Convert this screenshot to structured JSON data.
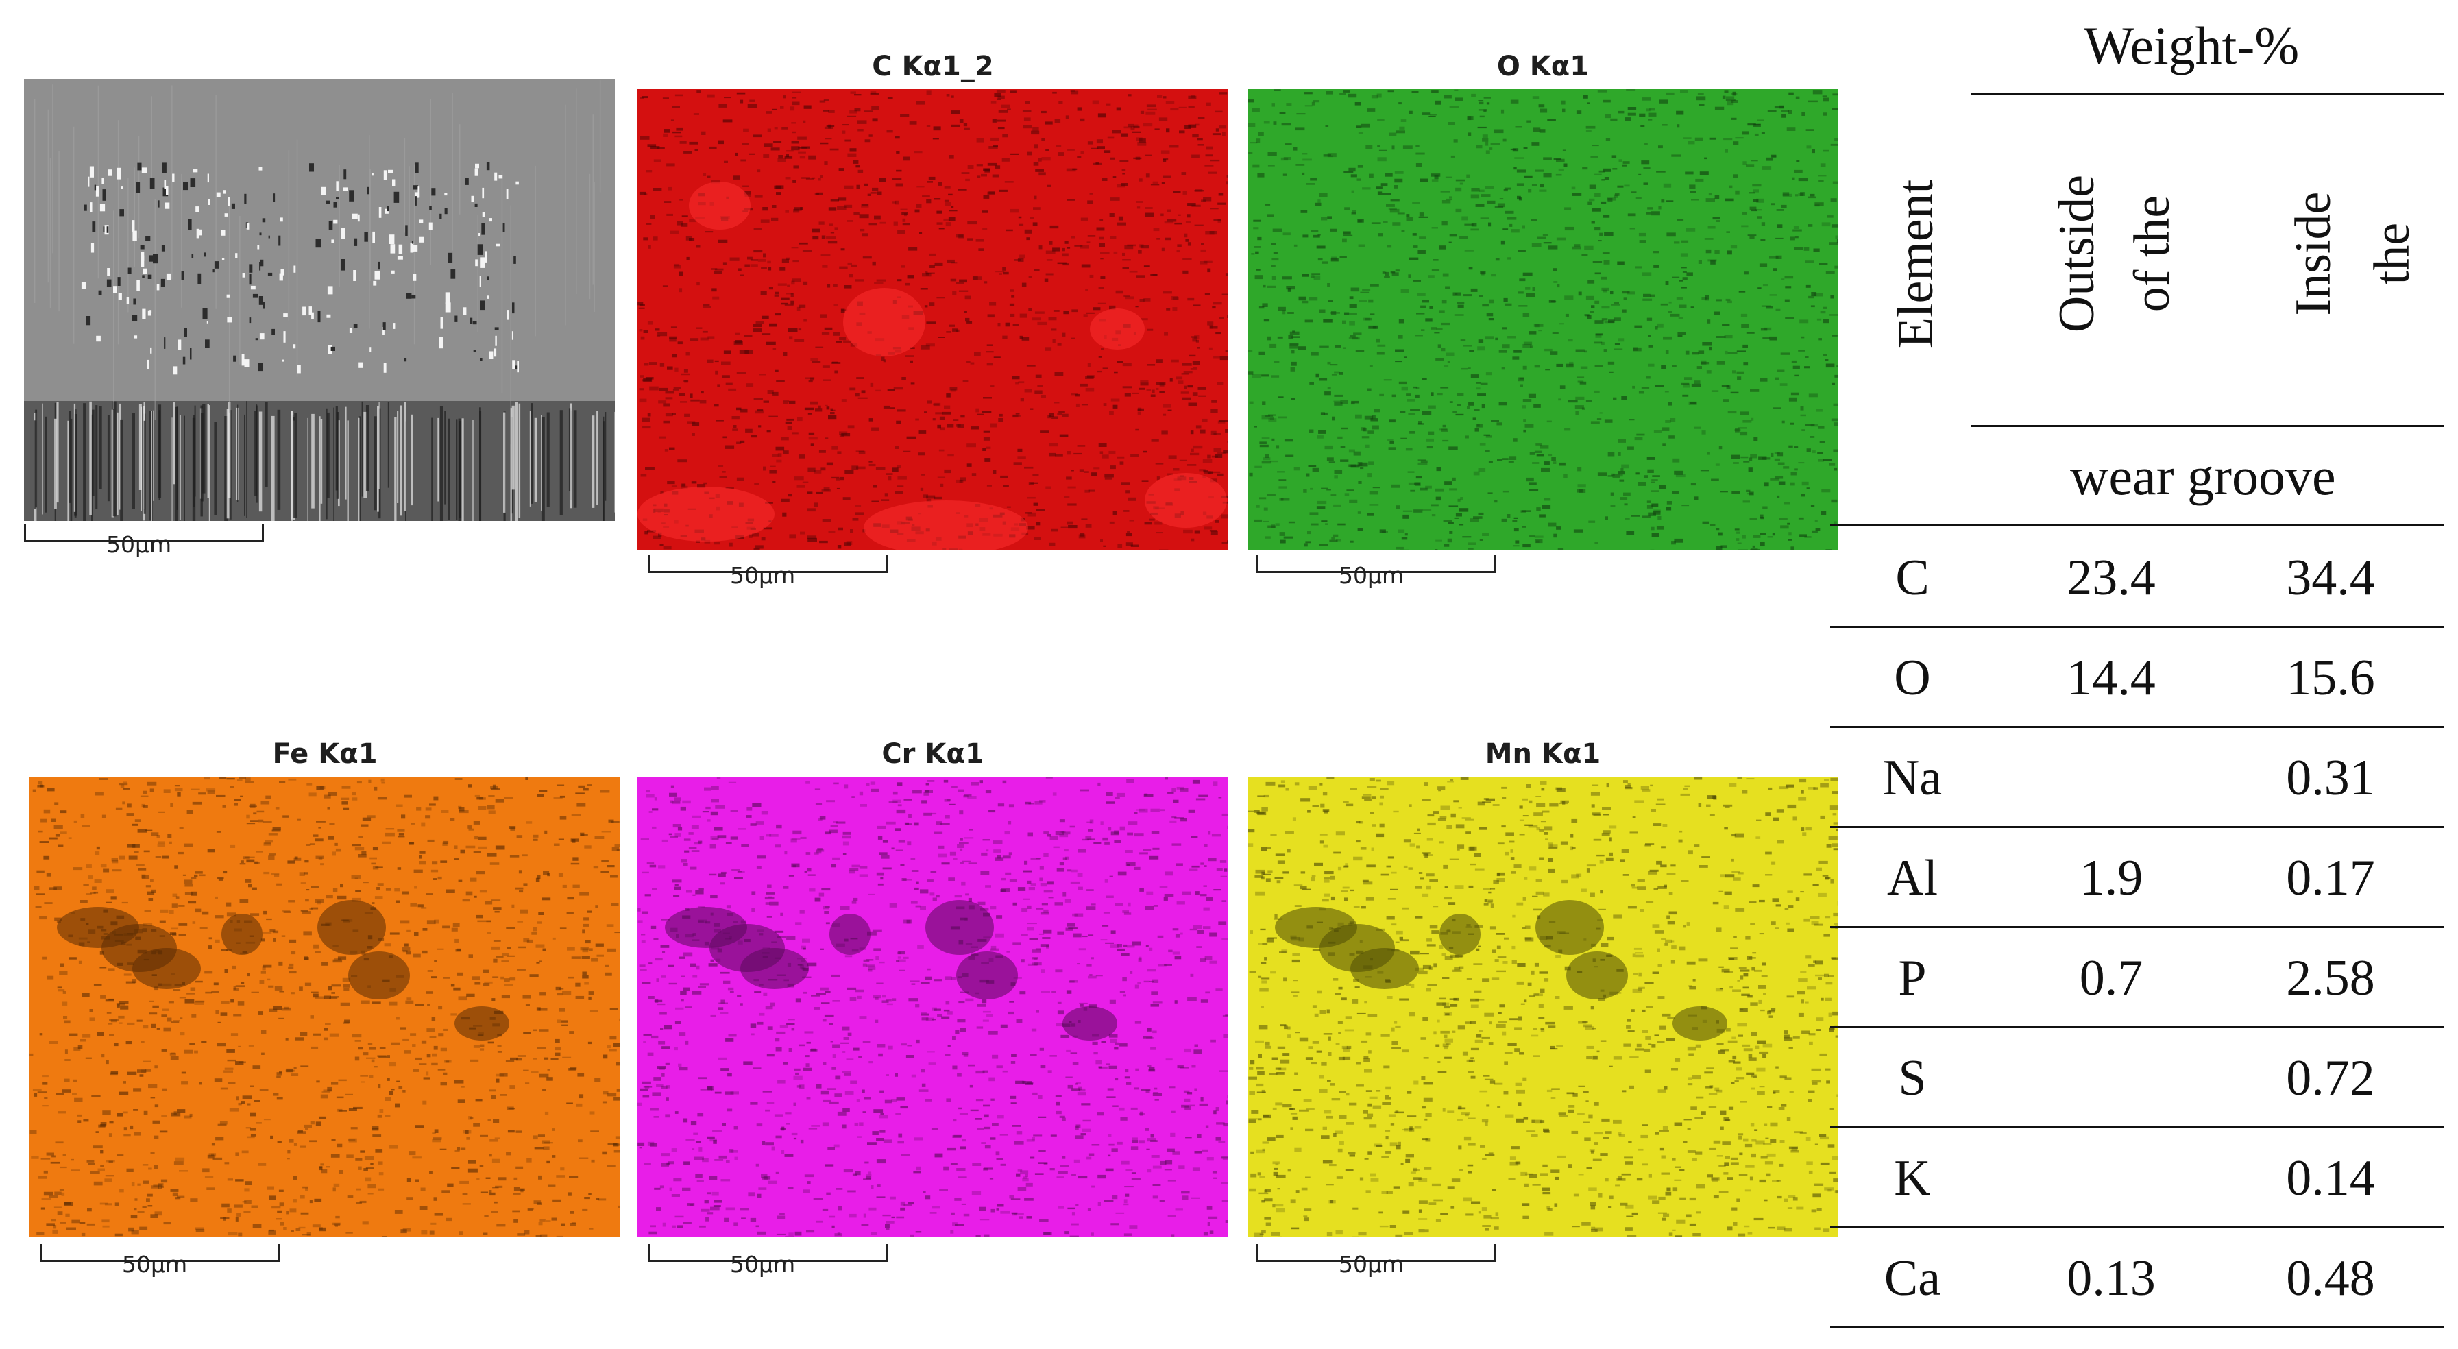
{
  "maps": [
    {
      "key": "sem",
      "title": "",
      "scale": "50µm",
      "color": "#8a8a8a",
      "dark": "#2a2a2a"
    },
    {
      "key": "c",
      "title": "C Kα1_2",
      "scale": "50µm",
      "color": "#d41010",
      "dark": "#4a0404"
    },
    {
      "key": "o",
      "title": "O Kα1",
      "scale": "50µm",
      "color": "#2fa82a",
      "dark": "#0f3e0e"
    },
    {
      "key": "fe",
      "title": "Fe Kα1",
      "scale": "50µm",
      "color": "#ef7a10",
      "dark": "#5a2b04"
    },
    {
      "key": "cr",
      "title": "Cr Kα1",
      "scale": "50µm",
      "color": "#e81ee8",
      "dark": "#5a0a5a"
    },
    {
      "key": "mn",
      "title": "Mn Kα1",
      "scale": "50µm",
      "color": "#e6e020",
      "dark": "#4f4c06"
    }
  ],
  "table": {
    "header_weight": "Weight-%",
    "header_element": "Element",
    "col1_a": "Outside",
    "col1_b": "of the",
    "col2_a": "Inside",
    "col2_b": "the",
    "subheader": "wear groove",
    "rows": [
      {
        "element": "C",
        "outside": "23.4",
        "inside": "34.4"
      },
      {
        "element": "O",
        "outside": "14.4",
        "inside": "15.6"
      },
      {
        "element": "Na",
        "outside": "",
        "inside": "0.31"
      },
      {
        "element": "Al",
        "outside": "1.9",
        "inside": "0.17"
      },
      {
        "element": "P",
        "outside": "0.7",
        "inside": "2.58"
      },
      {
        "element": "S",
        "outside": "",
        "inside": "0.72"
      },
      {
        "element": "K",
        "outside": "",
        "inside": "0.14"
      },
      {
        "element": "Ca",
        "outside": "0.13",
        "inside": "0.48"
      }
    ]
  }
}
